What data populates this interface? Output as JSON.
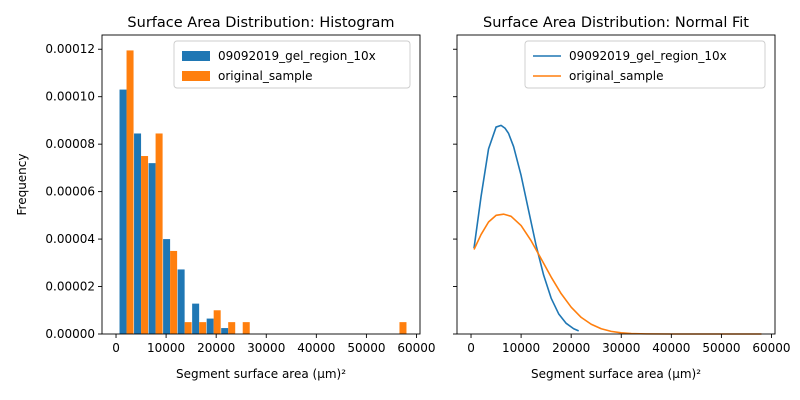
{
  "chart_data": [
    {
      "type": "bar",
      "title": "Surface Area Distribution: Histogram",
      "xlabel": "Segment surface area (μm)²",
      "ylabel": "Frequency",
      "xlim": [
        -2800,
        60700
      ],
      "ylim": [
        0,
        0.000126
      ],
      "x_ticks": [
        0,
        10000,
        20000,
        30000,
        40000,
        50000,
        60000
      ],
      "y_ticks": [
        0,
        2e-05,
        4e-05,
        6e-05,
        8e-05,
        0.0001,
        0.00012
      ],
      "y_tick_labels": [
        "0.00000",
        "0.00002",
        "0.00004",
        "0.00006",
        "0.00008",
        "0.00010",
        "0.00012"
      ],
      "grid": false,
      "legend_position": "top-right",
      "bin_width": 1400,
      "series": [
        {
          "name": "09092019_gel_region_10x",
          "color": "#1f77b4",
          "bars": [
            {
              "x": 1400,
              "value": 0.000103
            },
            {
              "x": 4300,
              "value": 8.45e-05
            },
            {
              "x": 7200,
              "value": 7.2e-05
            },
            {
              "x": 10100,
              "value": 4e-05
            },
            {
              "x": 13000,
              "value": 2.72e-05
            },
            {
              "x": 15900,
              "value": 1.28e-05
            },
            {
              "x": 18800,
              "value": 6.5e-06
            },
            {
              "x": 21700,
              "value": 2.5e-06
            }
          ]
        },
        {
          "name": "original_sample",
          "color": "#ff7f0e",
          "bars": [
            {
              "x": 2800,
              "value": 0.0001195
            },
            {
              "x": 5700,
              "value": 7.5e-05
            },
            {
              "x": 8600,
              "value": 8.45e-05
            },
            {
              "x": 11500,
              "value": 3.5e-05
            },
            {
              "x": 14400,
              "value": 5e-06
            },
            {
              "x": 17300,
              "value": 5e-06
            },
            {
              "x": 20200,
              "value": 1e-05
            },
            {
              "x": 23100,
              "value": 5e-06
            },
            {
              "x": 26000,
              "value": 5e-06
            },
            {
              "x": 57300,
              "value": 5e-06
            }
          ]
        }
      ]
    },
    {
      "type": "line",
      "title": "Surface Area Distribution: Normal Fit",
      "xlabel": "Segment surface area (μm)²",
      "ylabel": "",
      "xlim": [
        -2800,
        60700
      ],
      "ylim": [
        0,
        0.000126
      ],
      "x_ticks": [
        0,
        10000,
        20000,
        30000,
        40000,
        50000,
        60000
      ],
      "shared_y": true,
      "grid": false,
      "legend_position": "top-right",
      "series": [
        {
          "name": "09092019_gel_region_10x",
          "color": "#1f77b4",
          "x": [
            600,
            2000,
            3500,
            5000,
            6000,
            6800,
            7500,
            8500,
            10000,
            11500,
            13000,
            14500,
            16000,
            17500,
            19000,
            20500,
            21500
          ],
          "y": [
            3.62e-05,
            5.79e-05,
            7.8e-05,
            8.72e-05,
            8.79e-05,
            8.67e-05,
            8.45e-05,
            7.9e-05,
            6.68e-05,
            5.2e-05,
            3.73e-05,
            2.48e-05,
            1.51e-05,
            8.5e-06,
            4.5e-06,
            2.2e-06,
            1.3e-06
          ]
        },
        {
          "name": "original_sample",
          "color": "#ff7f0e",
          "x": [
            600,
            2000,
            3500,
            5000,
            6500,
            8000,
            10000,
            12000,
            14000,
            16000,
            18000,
            20000,
            22000,
            24000,
            26000,
            28000,
            30000,
            32000,
            35000,
            40000,
            45000,
            50000,
            58000
          ],
          "y": [
            3.56e-05,
            4.19e-05,
            4.72e-05,
            5e-05,
            5.05e-05,
            4.96e-05,
            4.57e-05,
            3.93e-05,
            3.17e-05,
            2.4e-05,
            1.7e-05,
            1.13e-05,
            7e-06,
            4.1e-06,
            2.2e-06,
            1.1e-06,
            5e-07,
            2e-07,
            5e-08,
            0.0,
            0.0,
            0.0,
            0.0
          ]
        }
      ]
    }
  ]
}
